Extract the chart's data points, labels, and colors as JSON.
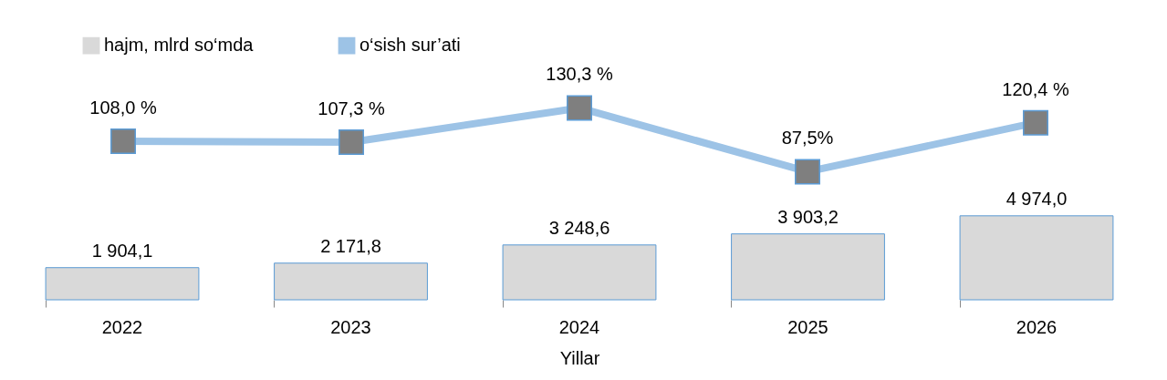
{
  "chart_data": [
    {
      "type": "line",
      "categories": [
        "2022",
        "2023",
        "2024",
        "2025",
        "2026"
      ],
      "legend": "top left",
      "marker": "square",
      "line_style": "solid",
      "tick_labels": false,
      "series": [
        {
          "name": "o‘sish sur’ati",
          "color": "#9dc3e6",
          "values": [
            108.0,
            107.3,
            130.3,
            87.5,
            120.4
          ],
          "value_labels": [
            "108,0 %",
            "107,3 %",
            "130,3 %",
            "87,5%",
            "120,4 %"
          ]
        }
      ]
    },
    {
      "type": "bar",
      "xlabel": "Yillar",
      "categories": [
        "2022",
        "2023",
        "2024",
        "2025",
        "2026"
      ],
      "legend": "top left",
      "grid": false,
      "tick_labels": "x",
      "series": [
        {
          "name": "hajm, mlrd so‘mda",
          "color": "#d9d9d9",
          "values": [
            1904.1,
            2171.8,
            3248.6,
            3903.2,
            4974.0
          ],
          "value_labels": [
            "1 904,1",
            "2 171,8",
            "3 248,6",
            "3 903,2",
            "4 974,0"
          ]
        }
      ]
    }
  ]
}
